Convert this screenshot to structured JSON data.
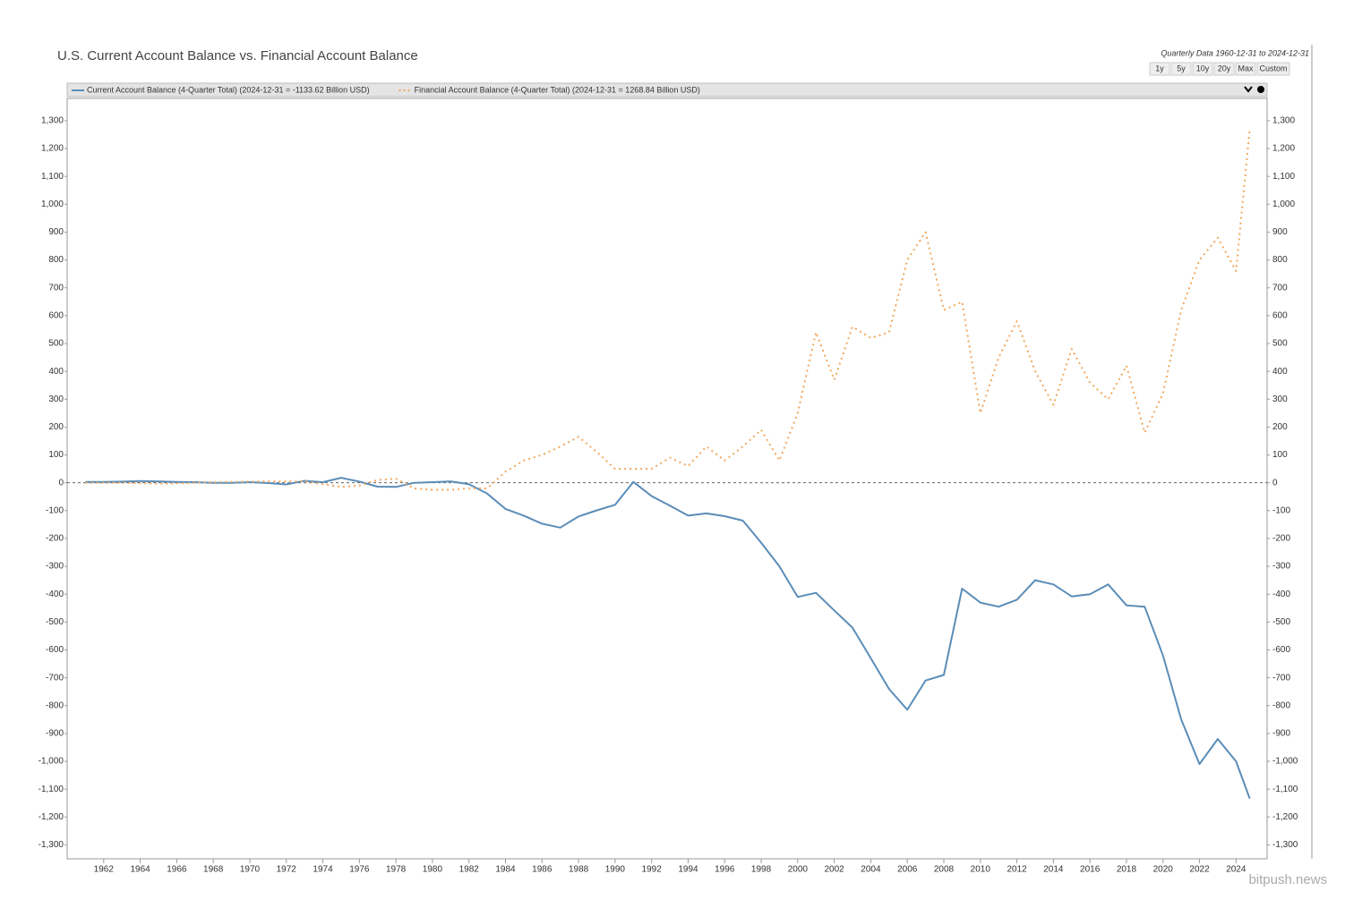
{
  "chart_data": {
    "type": "line",
    "title": "U.S. Current Account Balance vs. Financial Account Balance",
    "subtitle": "Quarterly Data 1960-12-31 to 2024-12-31",
    "x": [
      1961,
      1962,
      1963,
      1964,
      1965,
      1966,
      1967,
      1968,
      1969,
      1970,
      1971,
      1972,
      1973,
      1974,
      1975,
      1976,
      1977,
      1978,
      1979,
      1980,
      1981,
      1982,
      1983,
      1984,
      1985,
      1986,
      1987,
      1988,
      1989,
      1990,
      1991,
      1992,
      1993,
      1994,
      1995,
      1996,
      1997,
      1998,
      1999,
      2000,
      2001,
      2002,
      2003,
      2004,
      2005,
      2006,
      2007,
      2008,
      2009,
      2010,
      2011,
      2012,
      2013,
      2014,
      2015,
      2016,
      2017,
      2018,
      2019,
      2020,
      2021,
      2022,
      2023,
      2024,
      2024.75
    ],
    "series": [
      {
        "name": "Current Account Balance (4-Quarter Total) (2024-12-31 = -1133.62 Billion USD)",
        "color": "#5b8db8",
        "style": "solid",
        "values": [
          3,
          3,
          4,
          6,
          5,
          3,
          2,
          0,
          0,
          2,
          -1,
          -6,
          7,
          2,
          18,
          4,
          -14,
          -15,
          0,
          2,
          5,
          -5,
          -39,
          -94,
          -118,
          -147,
          -161,
          -121,
          -99,
          -79,
          3,
          -48,
          -82,
          -118,
          -110,
          -120,
          -136,
          -215,
          -300,
          -410,
          -395,
          -458,
          -520,
          -630,
          -740,
          -815,
          -710,
          -690,
          -380,
          -430,
          -445,
          -420,
          -350,
          -365,
          -408,
          -400,
          -365,
          -440,
          -445,
          -620,
          -850,
          -1010,
          -920,
          -1000,
          -1133.62
        ]
      },
      {
        "name": "Financial Account Balance (4-Quarter Total) (2024-12-31 = 1268.84 Billion USD)",
        "color": "#f0a860",
        "style": "dotted",
        "values": [
          0,
          0,
          0,
          -2,
          -3,
          -2,
          0,
          2,
          3,
          4,
          5,
          5,
          5,
          -5,
          -15,
          -10,
          10,
          15,
          -20,
          -25,
          -25,
          -20,
          -20,
          40,
          80,
          100,
          130,
          165,
          110,
          50,
          50,
          50,
          90,
          60,
          130,
          80,
          130,
          190,
          80,
          250,
          540,
          370,
          560,
          520,
          540,
          800,
          900,
          620,
          650,
          250,
          450,
          580,
          400,
          280,
          480,
          360,
          300,
          420,
          180,
          320,
          620,
          800,
          880,
          760,
          1268.84
        ]
      }
    ],
    "xlim": [
      1960,
      2025.7
    ],
    "xticks": [
      1962,
      1964,
      1966,
      1968,
      1970,
      1972,
      1974,
      1976,
      1978,
      1980,
      1982,
      1984,
      1986,
      1988,
      1990,
      1992,
      1994,
      1996,
      1998,
      2000,
      2002,
      2004,
      2006,
      2008,
      2010,
      2012,
      2014,
      2016,
      2018,
      2020,
      2022,
      2024
    ],
    "ylim": [
      -1350,
      1380
    ],
    "yticks": [
      {
        "value": 1300,
        "label": "1,300"
      },
      {
        "value": 1200,
        "label": "1,200"
      },
      {
        "value": 1100,
        "label": "1,100"
      },
      {
        "value": 1000,
        "label": "1,000"
      },
      900,
      800,
      700,
      600,
      500,
      400,
      300,
      200,
      100,
      0,
      -100,
      -200,
      -300,
      -400,
      -500,
      -600,
      -700,
      -800,
      -900,
      {
        "value": -1000,
        "label": "-1,000"
      },
      {
        "value": -1100,
        "label": "-1,100"
      },
      {
        "value": -1200,
        "label": "-1,200"
      },
      {
        "value": -1300,
        "label": "-1,300"
      }
    ],
    "grid": false,
    "zero_line": true
  },
  "range_buttons": [
    "1y",
    "5y",
    "10y",
    "20y",
    "Max",
    "Custom"
  ],
  "watermark": "bitpush.news"
}
